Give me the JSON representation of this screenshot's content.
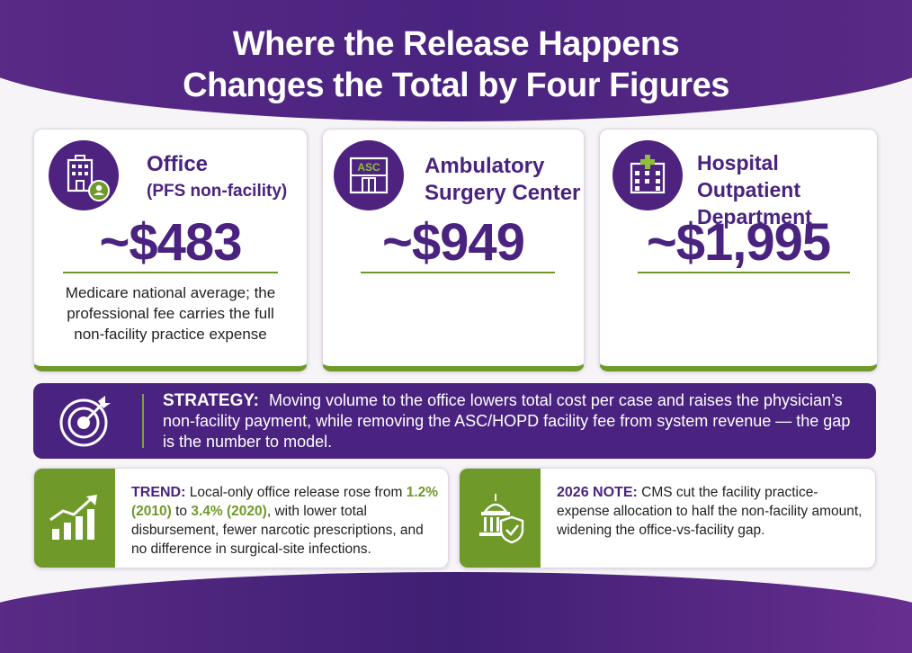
{
  "header": {
    "title_line1": "Where the Release Happens",
    "title_line2": "Changes the Total by Four Figures"
  },
  "cards": [
    {
      "icon": "office-building-person-icon",
      "title": "Office",
      "subtitle": "(PFS non-facility)",
      "price": "~$483",
      "description": "Medicare national average; the professional fee carries the full non-facility practice expense"
    },
    {
      "icon": "asc-building-icon",
      "icon_text": "ASC",
      "title_line1": "Ambulatory",
      "title_line2": "Surgery Center",
      "price": "~$949"
    },
    {
      "icon": "hospital-icon",
      "title_line1": "Hospital Outpatient",
      "title_line2": "Department",
      "price": "~$1,995"
    }
  ],
  "strategy": {
    "icon": "target-arrow-icon",
    "label": "STRATEGY:",
    "text": "Moving volume to the office lowers total cost per case and raises the physician’s non-facility payment, while removing the ASC/HOPD facility fee from system revenue — the gap is the number to model."
  },
  "trend": {
    "icon": "bar-chart-up-icon",
    "label": "TREND:",
    "text_a": "Local-only office release rose from",
    "highlight_1": "1.2% (2010)",
    "text_b": "to",
    "highlight_2": "3.4% (2020)",
    "text_c": ", with lower total disbursement, fewer narcotic prescriptions, and no difference in surgical-site infections."
  },
  "note": {
    "icon": "capitol-shield-icon",
    "label": "2026 NOTE:",
    "text": "CMS cut the facility practice-expense allocation to half the non-facility amount, widening the office-vs-facility gap."
  },
  "colors": {
    "purple": "#4a2380",
    "green": "#6f9a2a",
    "background": "#f6f4f7"
  }
}
